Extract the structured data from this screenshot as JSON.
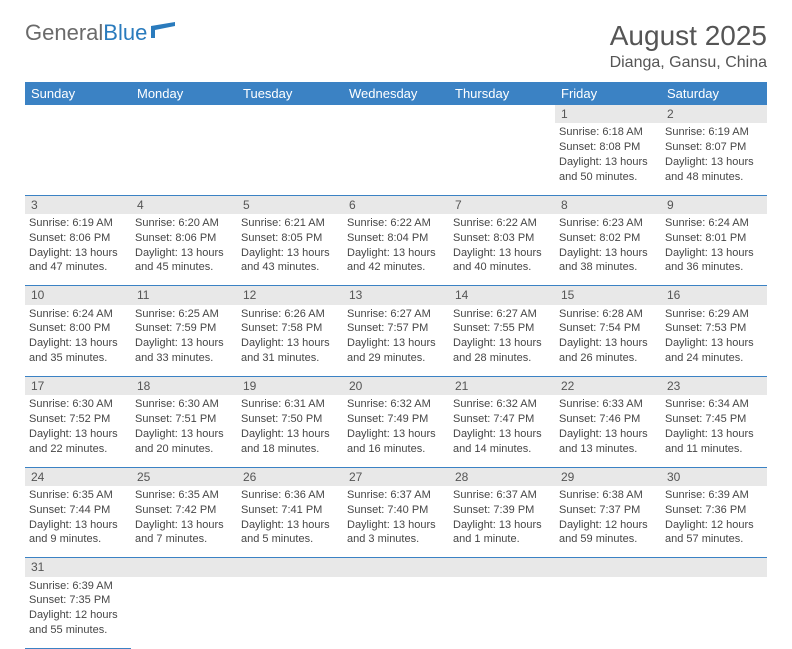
{
  "logo": {
    "text1": "General",
    "text2": "Blue"
  },
  "title": "August 2025",
  "subtitle": "Dianga, Gansu, China",
  "colors": {
    "header_bg": "#3b82c4",
    "header_text": "#ffffff",
    "daynum_bg": "#e8e8e8",
    "border": "#3b82c4",
    "logo_gray": "#6a6a6a",
    "logo_blue": "#2a7bbd"
  },
  "weekdays": [
    "Sunday",
    "Monday",
    "Tuesday",
    "Wednesday",
    "Thursday",
    "Friday",
    "Saturday"
  ],
  "weeks": [
    [
      null,
      null,
      null,
      null,
      null,
      {
        "n": "1",
        "sr": "Sunrise: 6:18 AM",
        "ss": "Sunset: 8:08 PM",
        "d1": "Daylight: 13 hours",
        "d2": "and 50 minutes."
      },
      {
        "n": "2",
        "sr": "Sunrise: 6:19 AM",
        "ss": "Sunset: 8:07 PM",
        "d1": "Daylight: 13 hours",
        "d2": "and 48 minutes."
      }
    ],
    [
      {
        "n": "3",
        "sr": "Sunrise: 6:19 AM",
        "ss": "Sunset: 8:06 PM",
        "d1": "Daylight: 13 hours",
        "d2": "and 47 minutes."
      },
      {
        "n": "4",
        "sr": "Sunrise: 6:20 AM",
        "ss": "Sunset: 8:06 PM",
        "d1": "Daylight: 13 hours",
        "d2": "and 45 minutes."
      },
      {
        "n": "5",
        "sr": "Sunrise: 6:21 AM",
        "ss": "Sunset: 8:05 PM",
        "d1": "Daylight: 13 hours",
        "d2": "and 43 minutes."
      },
      {
        "n": "6",
        "sr": "Sunrise: 6:22 AM",
        "ss": "Sunset: 8:04 PM",
        "d1": "Daylight: 13 hours",
        "d2": "and 42 minutes."
      },
      {
        "n": "7",
        "sr": "Sunrise: 6:22 AM",
        "ss": "Sunset: 8:03 PM",
        "d1": "Daylight: 13 hours",
        "d2": "and 40 minutes."
      },
      {
        "n": "8",
        "sr": "Sunrise: 6:23 AM",
        "ss": "Sunset: 8:02 PM",
        "d1": "Daylight: 13 hours",
        "d2": "and 38 minutes."
      },
      {
        "n": "9",
        "sr": "Sunrise: 6:24 AM",
        "ss": "Sunset: 8:01 PM",
        "d1": "Daylight: 13 hours",
        "d2": "and 36 minutes."
      }
    ],
    [
      {
        "n": "10",
        "sr": "Sunrise: 6:24 AM",
        "ss": "Sunset: 8:00 PM",
        "d1": "Daylight: 13 hours",
        "d2": "and 35 minutes."
      },
      {
        "n": "11",
        "sr": "Sunrise: 6:25 AM",
        "ss": "Sunset: 7:59 PM",
        "d1": "Daylight: 13 hours",
        "d2": "and 33 minutes."
      },
      {
        "n": "12",
        "sr": "Sunrise: 6:26 AM",
        "ss": "Sunset: 7:58 PM",
        "d1": "Daylight: 13 hours",
        "d2": "and 31 minutes."
      },
      {
        "n": "13",
        "sr": "Sunrise: 6:27 AM",
        "ss": "Sunset: 7:57 PM",
        "d1": "Daylight: 13 hours",
        "d2": "and 29 minutes."
      },
      {
        "n": "14",
        "sr": "Sunrise: 6:27 AM",
        "ss": "Sunset: 7:55 PM",
        "d1": "Daylight: 13 hours",
        "d2": "and 28 minutes."
      },
      {
        "n": "15",
        "sr": "Sunrise: 6:28 AM",
        "ss": "Sunset: 7:54 PM",
        "d1": "Daylight: 13 hours",
        "d2": "and 26 minutes."
      },
      {
        "n": "16",
        "sr": "Sunrise: 6:29 AM",
        "ss": "Sunset: 7:53 PM",
        "d1": "Daylight: 13 hours",
        "d2": "and 24 minutes."
      }
    ],
    [
      {
        "n": "17",
        "sr": "Sunrise: 6:30 AM",
        "ss": "Sunset: 7:52 PM",
        "d1": "Daylight: 13 hours",
        "d2": "and 22 minutes."
      },
      {
        "n": "18",
        "sr": "Sunrise: 6:30 AM",
        "ss": "Sunset: 7:51 PM",
        "d1": "Daylight: 13 hours",
        "d2": "and 20 minutes."
      },
      {
        "n": "19",
        "sr": "Sunrise: 6:31 AM",
        "ss": "Sunset: 7:50 PM",
        "d1": "Daylight: 13 hours",
        "d2": "and 18 minutes."
      },
      {
        "n": "20",
        "sr": "Sunrise: 6:32 AM",
        "ss": "Sunset: 7:49 PM",
        "d1": "Daylight: 13 hours",
        "d2": "and 16 minutes."
      },
      {
        "n": "21",
        "sr": "Sunrise: 6:32 AM",
        "ss": "Sunset: 7:47 PM",
        "d1": "Daylight: 13 hours",
        "d2": "and 14 minutes."
      },
      {
        "n": "22",
        "sr": "Sunrise: 6:33 AM",
        "ss": "Sunset: 7:46 PM",
        "d1": "Daylight: 13 hours",
        "d2": "and 13 minutes."
      },
      {
        "n": "23",
        "sr": "Sunrise: 6:34 AM",
        "ss": "Sunset: 7:45 PM",
        "d1": "Daylight: 13 hours",
        "d2": "and 11 minutes."
      }
    ],
    [
      {
        "n": "24",
        "sr": "Sunrise: 6:35 AM",
        "ss": "Sunset: 7:44 PM",
        "d1": "Daylight: 13 hours",
        "d2": "and 9 minutes."
      },
      {
        "n": "25",
        "sr": "Sunrise: 6:35 AM",
        "ss": "Sunset: 7:42 PM",
        "d1": "Daylight: 13 hours",
        "d2": "and 7 minutes."
      },
      {
        "n": "26",
        "sr": "Sunrise: 6:36 AM",
        "ss": "Sunset: 7:41 PM",
        "d1": "Daylight: 13 hours",
        "d2": "and 5 minutes."
      },
      {
        "n": "27",
        "sr": "Sunrise: 6:37 AM",
        "ss": "Sunset: 7:40 PM",
        "d1": "Daylight: 13 hours",
        "d2": "and 3 minutes."
      },
      {
        "n": "28",
        "sr": "Sunrise: 6:37 AM",
        "ss": "Sunset: 7:39 PM",
        "d1": "Daylight: 13 hours",
        "d2": "and 1 minute."
      },
      {
        "n": "29",
        "sr": "Sunrise: 6:38 AM",
        "ss": "Sunset: 7:37 PM",
        "d1": "Daylight: 12 hours",
        "d2": "and 59 minutes."
      },
      {
        "n": "30",
        "sr": "Sunrise: 6:39 AM",
        "ss": "Sunset: 7:36 PM",
        "d1": "Daylight: 12 hours",
        "d2": "and 57 minutes."
      }
    ],
    [
      {
        "n": "31",
        "sr": "Sunrise: 6:39 AM",
        "ss": "Sunset: 7:35 PM",
        "d1": "Daylight: 12 hours",
        "d2": "and 55 minutes."
      },
      null,
      null,
      null,
      null,
      null,
      null
    ]
  ]
}
